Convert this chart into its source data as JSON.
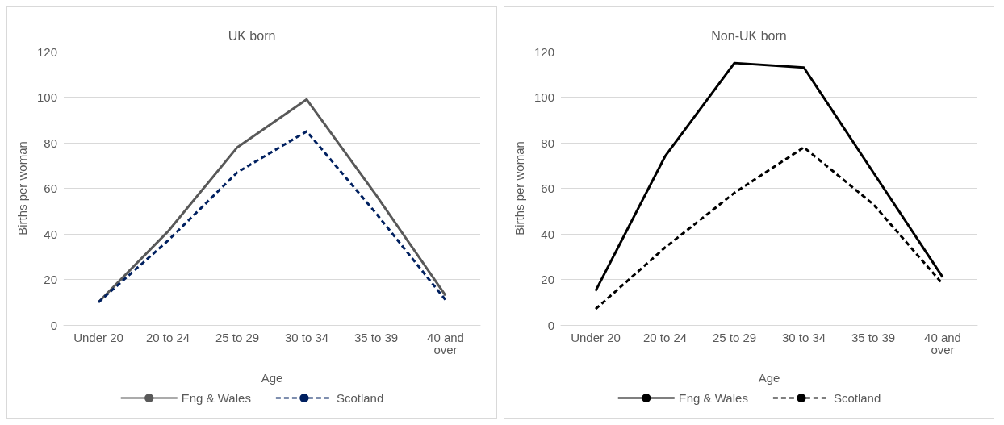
{
  "chart_data": [
    {
      "type": "line",
      "title": "UK born",
      "xlabel": "Age",
      "ylabel": "Births per woman",
      "categories": [
        "Under 20",
        "20 to 24",
        "25 to 29",
        "30 to 34",
        "35 to 39",
        "40 and\nover"
      ],
      "ylim": [
        0,
        120
      ],
      "yticks": [
        0,
        20,
        40,
        60,
        80,
        100,
        120
      ],
      "grid": "y",
      "legend": "bottom",
      "marker": "none",
      "series": [
        {
          "name": "Eng & Wales",
          "color": "#595959",
          "line_style": "solid",
          "values": [
            10,
            41,
            78,
            99,
            57,
            13
          ]
        },
        {
          "name": "Scotland",
          "color": "#002060",
          "line_style": "dashed",
          "values": [
            10,
            37,
            67,
            85,
            49,
            11
          ]
        }
      ]
    },
    {
      "type": "line",
      "title": "Non-UK born",
      "xlabel": "Age",
      "ylabel": "Births per woman",
      "categories": [
        "Under 20",
        "20 to 24",
        "25 to 29",
        "30 to 34",
        "35 to 39",
        "40 and\nover"
      ],
      "ylim": [
        0,
        120
      ],
      "yticks": [
        0,
        20,
        40,
        60,
        80,
        100,
        120
      ],
      "grid": "y",
      "legend": "bottom",
      "marker": "none",
      "series": [
        {
          "name": "Eng & Wales",
          "color": "#000000",
          "line_style": "solid",
          "values": [
            15,
            74,
            115,
            113,
            67,
            21
          ]
        },
        {
          "name": "Scotland",
          "color": "#000000",
          "line_style": "dashed",
          "values": [
            7,
            34,
            58,
            78,
            53,
            18
          ]
        }
      ]
    }
  ]
}
